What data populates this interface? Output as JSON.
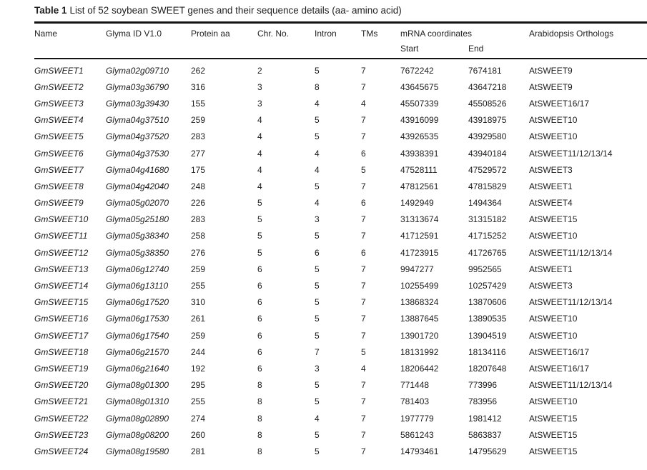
{
  "table": {
    "title_label": "Table 1",
    "title_text": "List of 52 soybean SWEET genes and their sequence details (aa- amino acid)",
    "columns": {
      "name": "Name",
      "glyma_id": "Glyma ID V1.0",
      "protein_aa": "Protein aa",
      "chr_no": "Chr. No.",
      "intron": "Intron",
      "tms": "TMs",
      "mrna": "mRNA coordinates",
      "orthologs": "Arabidopsis Orthologs"
    },
    "subcolumns": {
      "start": "Start",
      "end": "End"
    },
    "rows": [
      {
        "name": "GmSWEET1",
        "glyma_id": "Glyma02g09710",
        "protein_aa": "262",
        "chr_no": "2",
        "intron": "5",
        "tms": "7",
        "start": "7672242",
        "end": "7674181",
        "ortholog": "AtSWEET9"
      },
      {
        "name": "GmSWEET2",
        "glyma_id": "Glyma03g36790",
        "protein_aa": "316",
        "chr_no": "3",
        "intron": "8",
        "tms": "7",
        "start": "43645675",
        "end": "43647218",
        "ortholog": "AtSWEET9"
      },
      {
        "name": "GmSWEET3",
        "glyma_id": "Glyma03g39430",
        "protein_aa": "155",
        "chr_no": "3",
        "intron": "4",
        "tms": "4",
        "start": "45507339",
        "end": "45508526",
        "ortholog": "AtSWEET16/17"
      },
      {
        "name": "GmSWEET4",
        "glyma_id": "Glyma04g37510",
        "protein_aa": "259",
        "chr_no": "4",
        "intron": "5",
        "tms": "7",
        "start": "43916099",
        "end": "43918975",
        "ortholog": "AtSWEET10"
      },
      {
        "name": "GmSWEET5",
        "glyma_id": "Glyma04g37520",
        "protein_aa": "283",
        "chr_no": "4",
        "intron": "5",
        "tms": "7",
        "start": "43926535",
        "end": "43929580",
        "ortholog": "AtSWEET10"
      },
      {
        "name": "GmSWEET6",
        "glyma_id": "Glyma04g37530",
        "protein_aa": "277",
        "chr_no": "4",
        "intron": "4",
        "tms": "6",
        "start": "43938391",
        "end": "43940184",
        "ortholog": "AtSWEET11/12/13/14"
      },
      {
        "name": "GmSWEET7",
        "glyma_id": "Glyma04g41680",
        "protein_aa": "175",
        "chr_no": "4",
        "intron": "4",
        "tms": "5",
        "start": "47528111",
        "end": "47529572",
        "ortholog": "AtSWEET3"
      },
      {
        "name": "GmSWEET8",
        "glyma_id": "Glyma04g42040",
        "protein_aa": "248",
        "chr_no": "4",
        "intron": "5",
        "tms": "7",
        "start": "47812561",
        "end": "47815829",
        "ortholog": "AtSWEET1"
      },
      {
        "name": "GmSWEET9",
        "glyma_id": "Glyma05g02070",
        "protein_aa": "226",
        "chr_no": "5",
        "intron": "4",
        "tms": "6",
        "start": "1492949",
        "end": "1494364",
        "ortholog": "AtSWEET4"
      },
      {
        "name": "GmSWEET10",
        "glyma_id": "Glyma05g25180",
        "protein_aa": "283",
        "chr_no": "5",
        "intron": "3",
        "tms": "7",
        "start": "31313674",
        "end": "31315182",
        "ortholog": "AtSWEET15"
      },
      {
        "name": "GmSWEET11",
        "glyma_id": "Glyma05g38340",
        "protein_aa": "258",
        "chr_no": "5",
        "intron": "5",
        "tms": "7",
        "start": "41712591",
        "end": "41715252",
        "ortholog": "AtSWEET10"
      },
      {
        "name": "GmSWEET12",
        "glyma_id": "Glyma05g38350",
        "protein_aa": "276",
        "chr_no": "5",
        "intron": "6",
        "tms": "6",
        "start": "41723915",
        "end": "41726765",
        "ortholog": "AtSWEET11/12/13/14"
      },
      {
        "name": "GmSWEET13",
        "glyma_id": "Glyma06g12740",
        "protein_aa": "259",
        "chr_no": "6",
        "intron": "5",
        "tms": "7",
        "start": "9947277",
        "end": "9952565",
        "ortholog": "AtSWEET1"
      },
      {
        "name": "GmSWEET14",
        "glyma_id": "Glyma06g13110",
        "protein_aa": "255",
        "chr_no": "6",
        "intron": "5",
        "tms": "7",
        "start": "10255499",
        "end": "10257429",
        "ortholog": "AtSWEET3"
      },
      {
        "name": "GmSWEET15",
        "glyma_id": "Glyma06g17520",
        "protein_aa": "310",
        "chr_no": "6",
        "intron": "5",
        "tms": "7",
        "start": "13868324",
        "end": "13870606",
        "ortholog": "AtSWEET11/12/13/14"
      },
      {
        "name": "GmSWEET16",
        "glyma_id": "Glyma06g17530",
        "protein_aa": "261",
        "chr_no": "6",
        "intron": "5",
        "tms": "7",
        "start": "13887645",
        "end": "13890535",
        "ortholog": "AtSWEET10"
      },
      {
        "name": "GmSWEET17",
        "glyma_id": "Glyma06g17540",
        "protein_aa": "259",
        "chr_no": "6",
        "intron": "5",
        "tms": "7",
        "start": "13901720",
        "end": "13904519",
        "ortholog": "AtSWEET10"
      },
      {
        "name": "GmSWEET18",
        "glyma_id": "Glyma06g21570",
        "protein_aa": "244",
        "chr_no": "6",
        "intron": "7",
        "tms": "5",
        "start": "18131992",
        "end": "18134116",
        "ortholog": "AtSWEET16/17"
      },
      {
        "name": "GmSWEET19",
        "glyma_id": "Glyma06g21640",
        "protein_aa": "192",
        "chr_no": "6",
        "intron": "3",
        "tms": "4",
        "start": "18206442",
        "end": "18207648",
        "ortholog": "AtSWEET16/17"
      },
      {
        "name": "GmSWEET20",
        "glyma_id": "Glyma08g01300",
        "protein_aa": "295",
        "chr_no": "8",
        "intron": "5",
        "tms": "7",
        "start": "771448",
        "end": "773996",
        "ortholog": "AtSWEET11/12/13/14"
      },
      {
        "name": "GmSWEET21",
        "glyma_id": "Glyma08g01310",
        "protein_aa": "255",
        "chr_no": "8",
        "intron": "5",
        "tms": "7",
        "start": "781403",
        "end": "783956",
        "ortholog": "AtSWEET10"
      },
      {
        "name": "GmSWEET22",
        "glyma_id": "Glyma08g02890",
        "protein_aa": "274",
        "chr_no": "8",
        "intron": "4",
        "tms": "7",
        "start": "1977779",
        "end": "1981412",
        "ortholog": "AtSWEET15"
      },
      {
        "name": "GmSWEET23",
        "glyma_id": "Glyma08g08200",
        "protein_aa": "260",
        "chr_no": "8",
        "intron": "5",
        "tms": "7",
        "start": "5861243",
        "end": "5863837",
        "ortholog": "AtSWEET15"
      },
      {
        "name": "GmSWEET24",
        "glyma_id": "Glyma08g19580",
        "protein_aa": "281",
        "chr_no": "8",
        "intron": "5",
        "tms": "7",
        "start": "14793461",
        "end": "14795629",
        "ortholog": "AtSWEET15"
      }
    ]
  },
  "colors": {
    "text": "#1c1c1c",
    "rule": "#141414",
    "background": "#ffffff"
  }
}
